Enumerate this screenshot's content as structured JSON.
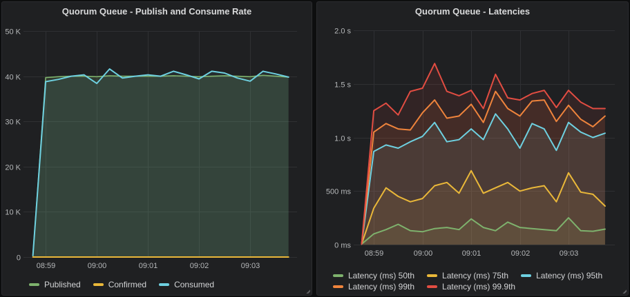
{
  "dashboard": {
    "panels": [
      {
        "id": "publish-consume-rate",
        "title": "Quorum Queue - Publish and Consume Rate",
        "chart_data": {
          "type": "area",
          "title": "Quorum Queue - Publish and Consume Rate",
          "grid": true,
          "legend_position": "bottom",
          "x_start_s": 0,
          "x_interval_s": 15,
          "x_range_s": [
            -4.5,
            310
          ],
          "x_ticks": [
            {
              "t": 15,
              "label": "08:59"
            },
            {
              "t": 75,
              "label": "09:00"
            },
            {
              "t": 135,
              "label": "09:01"
            },
            {
              "t": 195,
              "label": "09:02"
            },
            {
              "t": 255,
              "label": "09:03"
            }
          ],
          "ylim": [
            0,
            50
          ],
          "y_ticks": [
            {
              "v": 0,
              "label": "0"
            },
            {
              "v": 10,
              "label": "10 K"
            },
            {
              "v": 20,
              "label": "20 K"
            },
            {
              "v": 30,
              "label": "30 K"
            },
            {
              "v": 40,
              "label": "40 K"
            },
            {
              "v": 50,
              "label": "50 K"
            }
          ],
          "series": [
            {
              "name": "Published",
              "color": "#7EB26D",
              "fill_opacity": 0.18,
              "line_width": 1.6,
              "values": [
                0.3,
                39.7,
                39.9,
                40,
                40,
                39.9,
                40.1,
                40,
                40,
                40,
                40,
                40.1,
                40,
                39.9,
                40,
                40.1,
                40,
                39.9,
                40.2,
                40,
                39.8
              ]
            },
            {
              "name": "Confirmed",
              "color": "#EAB839",
              "fill_opacity": 0,
              "line_width": 2,
              "values": [
                0,
                0,
                0,
                0,
                0,
                0,
                0,
                0,
                0,
                0,
                0,
                0,
                0,
                0,
                0,
                0,
                0,
                0,
                0,
                0,
                0
              ]
            },
            {
              "name": "Consumed",
              "color": "#6ED0E0",
              "fill_opacity": 0.07,
              "line_width": 2,
              "values": [
                0.3,
                38.8,
                39.3,
                40,
                40.3,
                38.4,
                41.6,
                39.6,
                40,
                40.3,
                40,
                41.1,
                40.3,
                39.4,
                41.1,
                40.7,
                39.6,
                38.9,
                41.1,
                40.5,
                39.8
              ]
            }
          ]
        }
      },
      {
        "id": "latencies",
        "title": "Quorum Queue - Latencies",
        "chart_data": {
          "type": "area",
          "title": "Quorum Queue - Latencies",
          "grid": true,
          "legend_position": "bottom",
          "x_start_s": 0,
          "x_interval_s": 15,
          "x_range_s": [
            -3,
            312
          ],
          "x_ticks": [
            {
              "t": 15,
              "label": "08:59"
            },
            {
              "t": 75,
              "label": "09:00"
            },
            {
              "t": 135,
              "label": "09:01"
            },
            {
              "t": 195,
              "label": "09:02"
            },
            {
              "t": 255,
              "label": "09:03"
            }
          ],
          "ylim": [
            0,
            2
          ],
          "y_ticks": [
            {
              "v": 0,
              "label": "0 ms"
            },
            {
              "v": 0.5,
              "label": "500 ms"
            },
            {
              "v": 1,
              "label": "1.0 s"
            },
            {
              "v": 1.5,
              "label": "1.5 s"
            },
            {
              "v": 2,
              "label": "2.0 s"
            }
          ],
          "series": [
            {
              "name": "Latency (ms) 50th",
              "color": "#7EB26D",
              "fill_opacity": 0.1,
              "line_width": 2,
              "values": [
                0.005,
                0.1,
                0.14,
                0.19,
                0.13,
                0.12,
                0.15,
                0.16,
                0.14,
                0.24,
                0.16,
                0.13,
                0.21,
                0.16,
                0.15,
                0.14,
                0.13,
                0.25,
                0.13,
                0.125,
                0.145
              ]
            },
            {
              "name": "Latency (ms) 75th",
              "color": "#EAB839",
              "fill_opacity": 0.1,
              "line_width": 2,
              "values": [
                0.005,
                0.34,
                0.53,
                0.45,
                0.4,
                0.43,
                0.55,
                0.58,
                0.48,
                0.69,
                0.48,
                0.53,
                0.58,
                0.5,
                0.53,
                0.55,
                0.4,
                0.67,
                0.49,
                0.47,
                0.36
              ]
            },
            {
              "name": "Latency (ms) 95th",
              "color": "#6ED0E0",
              "fill_opacity": 0.1,
              "line_width": 2,
              "values": [
                0.005,
                0.87,
                0.93,
                0.9,
                0.96,
                1.01,
                1.14,
                0.96,
                0.98,
                1.08,
                0.98,
                1.22,
                1.08,
                0.9,
                1.13,
                1.08,
                0.88,
                1.14,
                1.05,
                1,
                1.04
              ]
            },
            {
              "name": "Latency (ms) 99th",
              "color": "#EF843C",
              "fill_opacity": 0.1,
              "line_width": 2,
              "values": [
                0.005,
                1.05,
                1.13,
                1.08,
                1.07,
                1.23,
                1.35,
                1.18,
                1.2,
                1.31,
                1.14,
                1.43,
                1.27,
                1.2,
                1.34,
                1.35,
                1.15,
                1.3,
                1.17,
                1.1,
                1.2
              ]
            },
            {
              "name": "Latency (ms) 99.9th",
              "color": "#E24D42",
              "fill_opacity": 0.1,
              "line_width": 2,
              "values": [
                0.005,
                1.25,
                1.32,
                1.21,
                1.43,
                1.46,
                1.69,
                1.43,
                1.39,
                1.44,
                1.27,
                1.59,
                1.37,
                1.35,
                1.41,
                1.44,
                1.28,
                1.44,
                1.33,
                1.27,
                1.27
              ]
            }
          ]
        }
      }
    ]
  }
}
